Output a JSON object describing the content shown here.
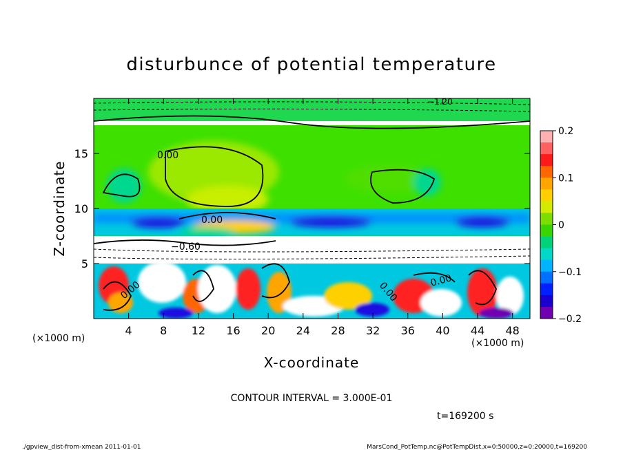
{
  "chart_data": {
    "type": "heatmap",
    "title": "disturbunce of potential temperature",
    "xlabel": "X-coordinate",
    "ylabel": "Z-coordinate",
    "x_unit": "(×1000 m)",
    "z_unit": "(×1000 m)",
    "xlim": [
      0,
      50
    ],
    "zlim": [
      0,
      20
    ],
    "x_ticks": [
      4,
      8,
      12,
      16,
      20,
      24,
      28,
      32,
      36,
      40,
      44,
      48
    ],
    "z_ticks": [
      5,
      10,
      15
    ],
    "colorbar": {
      "range": [
        -0.2,
        0.2
      ],
      "ticks": [
        "0.2",
        "0.1",
        "0",
        "−0.1",
        "−0.2"
      ],
      "colors": [
        "#ffb0b0",
        "#ff6060",
        "#ff1a1a",
        "#ff6600",
        "#ffa500",
        "#ffd000",
        "#d4ea00",
        "#7ddd00",
        "#3ad400",
        "#00d27a",
        "#00d8c8",
        "#00b4ff",
        "#0070ff",
        "#0020ff",
        "#1a00d0",
        "#7000b0"
      ]
    },
    "contour_labels": [
      "0.00",
      "0.00",
      "−0.60",
      "0.00",
      "0.00",
      "0.00",
      "0.00",
      "−1.20"
    ],
    "contour_interval_text": "CONTOUR INTERVAL = 3.000E-01",
    "time_text": "t=169200 s"
  },
  "footer": {
    "left": "./gpview_dist-from-xmean  2011-01-01",
    "right": "MarsCond_PotTemp.nc@PotTempDist,x=0:50000,z=0:20000,t=169200"
  }
}
